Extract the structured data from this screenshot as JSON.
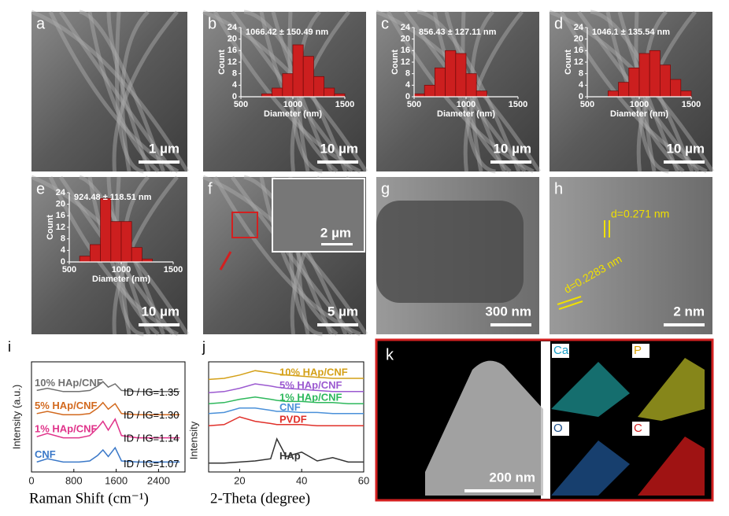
{
  "panels": [
    {
      "label": "a",
      "scale": "1 µm"
    },
    {
      "label": "b",
      "scale": "10 µm",
      "histogram": {
        "title": "1066.42 ± 150.49 nm",
        "xlabel": "Diameter (nm)",
        "ylabel": "Count",
        "xlim": [
          500,
          1500
        ],
        "ylim": [
          0,
          24
        ],
        "xticks": [
          500,
          1000,
          1500
        ],
        "yticks": [
          0,
          4,
          8,
          12,
          16,
          20,
          24
        ],
        "bins": [
          700,
          800,
          900,
          1000,
          1100,
          1200,
          1300,
          1400,
          1500
        ],
        "counts": [
          1,
          3,
          8,
          18,
          14,
          7,
          3,
          1
        ]
      }
    },
    {
      "label": "c",
      "scale": "10 µm",
      "histogram": {
        "title": "856.43 ± 127.11 nm",
        "xlabel": "Diameter (nm)",
        "ylabel": "Count",
        "xlim": [
          500,
          1500
        ],
        "ylim": [
          0,
          24
        ],
        "xticks": [
          500,
          1000,
          1500
        ],
        "yticks": [
          0,
          4,
          8,
          12,
          16,
          20,
          24
        ],
        "bins": [
          500,
          600,
          700,
          800,
          900,
          1000,
          1100,
          1200
        ],
        "counts": [
          1,
          4,
          10,
          16,
          15,
          8,
          2
        ]
      }
    },
    {
      "label": "d",
      "scale": "10 µm",
      "histogram": {
        "title": "1046.1 ± 135.54 nm",
        "xlabel": "Diameter (nm)",
        "ylabel": "Count",
        "xlim": [
          500,
          1500
        ],
        "ylim": [
          0,
          24
        ],
        "xticks": [
          500,
          1000,
          1500
        ],
        "yticks": [
          0,
          4,
          8,
          12,
          16,
          20,
          24
        ],
        "bins": [
          700,
          800,
          900,
          1000,
          1100,
          1200,
          1300,
          1400,
          1500
        ],
        "counts": [
          2,
          5,
          10,
          15,
          16,
          11,
          6,
          2
        ]
      }
    },
    {
      "label": "e",
      "scale": "10 µm",
      "histogram": {
        "title": "924.48 ± 118.51 nm",
        "xlabel": "Diameter (nm)",
        "ylabel": "Count",
        "xlim": [
          500,
          1500
        ],
        "ylim": [
          0,
          24
        ],
        "xticks": [
          500,
          1000,
          1500
        ],
        "yticks": [
          0,
          4,
          8,
          12,
          16,
          20,
          24
        ],
        "bins": [
          600,
          700,
          800,
          900,
          1000,
          1100,
          1200,
          1300
        ],
        "counts": [
          2,
          6,
          22,
          14,
          14,
          5,
          1
        ]
      }
    },
    {
      "label": "f",
      "scale": "5 µm",
      "inset_scale": "2 µm"
    },
    {
      "label": "g",
      "scale": "300 nm"
    },
    {
      "label": "h",
      "scale": "2 nm",
      "annotations": [
        "d=0.271 nm",
        "d=0.2283 nm"
      ]
    }
  ],
  "mapping": {
    "label": "k",
    "scale": "200 nm",
    "elements": [
      "Ca",
      "P",
      "O",
      "C"
    ]
  },
  "spectra": [
    {
      "label": "i",
      "xlabel": "Raman Shift (cm⁻¹)",
      "ylabel": "Intensity (a.u.)",
      "xlim": [
        0,
        2900
      ],
      "ylim": [
        0,
        100
      ],
      "xticks": [
        0,
        800,
        1600,
        2400
      ],
      "x": [
        100,
        300,
        600,
        900,
        1100,
        1250,
        1350,
        1450,
        1580,
        1700,
        2000,
        2400,
        2800
      ],
      "series": [
        {
          "name": "10% HAp/CNF",
          "color": "#707070",
          "annotation": "ID / IG=1.35",
          "values": [
            74,
            76,
            73,
            73,
            74,
            78,
            82,
            77,
            80,
            74,
            73,
            73,
            73
          ]
        },
        {
          "name": "5% HAp/CNF",
          "color": "#d2691e",
          "annotation": "ID / IG=1.30",
          "values": [
            53,
            55,
            52,
            52,
            53,
            58,
            63,
            57,
            62,
            53,
            52,
            52,
            52
          ]
        },
        {
          "name": "1% HAp/CNF",
          "color": "#e0338a",
          "annotation": "ID / IG=1.14",
          "values": [
            32,
            35,
            31,
            31,
            33,
            40,
            46,
            38,
            48,
            33,
            31,
            31,
            31
          ]
        },
        {
          "name": "CNF",
          "color": "#3a78c8",
          "annotation": "ID / IG=1.07",
          "values": [
            9,
            12,
            9,
            9,
            10,
            15,
            20,
            14,
            22,
            10,
            9,
            9,
            9
          ]
        }
      ]
    },
    {
      "label": "j",
      "xlabel": "2-Theta (degree)",
      "ylabel": "Intensity",
      "xlim": [
        10,
        60
      ],
      "ylim": [
        0,
        100
      ],
      "xticks": [
        20,
        40,
        60
      ],
      "x": [
        10,
        15,
        20,
        25,
        30,
        32,
        35,
        40,
        45,
        50,
        55,
        60
      ],
      "series": [
        {
          "name": "10% HAp/CNF",
          "color": "#d4a017",
          "values": [
            84,
            85,
            88,
            92,
            90,
            89,
            88,
            87,
            86,
            85,
            85,
            85
          ]
        },
        {
          "name": "5% HAp/CNF",
          "color": "#9b59d0",
          "values": [
            72,
            73,
            76,
            80,
            78,
            77,
            76,
            75,
            74,
            73,
            73,
            73
          ]
        },
        {
          "name": "1% HAp/CNF",
          "color": "#2eb85c",
          "values": [
            62,
            63,
            66,
            68,
            66,
            65,
            64,
            64,
            63,
            63,
            62,
            62
          ]
        },
        {
          "name": "CNF",
          "color": "#4a90d9",
          "values": [
            53,
            54,
            58,
            58,
            56,
            55,
            55,
            54,
            54,
            53,
            53,
            53
          ]
        },
        {
          "name": "PVDF",
          "color": "#e0302a",
          "values": [
            42,
            43,
            50,
            46,
            44,
            43,
            43,
            43,
            42,
            42,
            42,
            42
          ]
        },
        {
          "name": "HAp",
          "color": "#333333",
          "values": [
            8,
            8,
            9,
            10,
            12,
            30,
            14,
            18,
            10,
            13,
            9,
            9
          ]
        }
      ]
    }
  ]
}
